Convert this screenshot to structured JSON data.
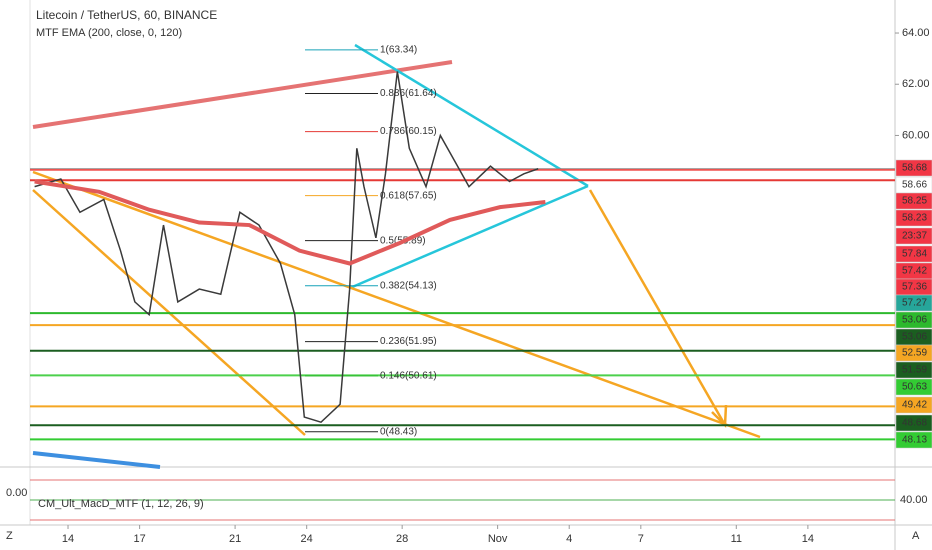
{
  "chart_data": {
    "type": "line",
    "title": "Litecoin / TetherUS, 60, BINANCE",
    "subtitle": "MTF EMA (200, close, 0, 120)",
    "xlim": [
      11.15,
      48.65
    ],
    "xticks": [
      14,
      17,
      21,
      24,
      28,
      {
        "value": 32,
        "label": "Nov"
      },
      {
        "value": 35,
        "label": "4"
      },
      {
        "value": 38,
        "label": "7"
      },
      {
        "value": 42,
        "label": "11"
      },
      {
        "value": 45,
        "label": "14"
      }
    ],
    "ylim": [
      47.09,
      65.29
    ],
    "yticks": [
      {
        "value": 64,
        "label": "64.00"
      },
      {
        "value": 62,
        "label": "62.00"
      },
      {
        "value": 60,
        "label": "60.00"
      }
    ],
    "series": [
      {
        "color": "#3a3a3a",
        "x": [
          12.6,
          13.7,
          14.5,
          15.5,
          16.2,
          16.8,
          17.4,
          18.0,
          18.6,
          19.5,
          20.4,
          21.2,
          22.0,
          22.9,
          23.5,
          23.9,
          24.6,
          25.4,
          25.8,
          26.1,
          26.4,
          26.9,
          27.3,
          27.8,
          28.3,
          29.0,
          29.6,
          30.2,
          30.8,
          31.7,
          32.5,
          33.1,
          33.7
        ],
        "values": [
          58.0,
          58.3,
          57.0,
          57.5,
          55.5,
          53.5,
          53.0,
          56.5,
          53.5,
          54.0,
          53.8,
          57.0,
          56.5,
          55.0,
          53.0,
          49.0,
          48.8,
          49.5,
          54.0,
          59.5,
          58.0,
          56.0,
          58.5,
          62.5,
          59.5,
          58.0,
          60.0,
          59.0,
          58.0,
          58.8,
          58.2,
          58.5,
          58.7
        ]
      },
      {
        "color": "#e05a5a",
        "x": [
          12.6,
          15.3,
          17.4,
          19.5,
          21.6,
          23.7,
          25.8,
          27.9,
          30.0,
          32.1,
          34.0
        ],
        "values": [
          58.2,
          57.8,
          57.1,
          56.6,
          56.5,
          55.5,
          55.0,
          55.8,
          56.7,
          57.2,
          57.4
        ]
      }
    ],
    "horizontal_lines": [
      {
        "value": 58.68,
        "color": "#5f9ea0"
      },
      {
        "value": 58.66,
        "color": "#ef5350"
      },
      {
        "value": 58.25,
        "color": "#e53935"
      },
      {
        "value": 53.06,
        "color": "#2db92d"
      },
      {
        "value": 52.59,
        "color": "#f5a623"
      },
      {
        "value": 51.59,
        "color": "#1b5e20"
      },
      {
        "value": 50.63,
        "color": "#4cd04c"
      },
      {
        "value": 49.42,
        "color": "#f5a623"
      },
      {
        "value": 48.68,
        "color": "#1b5e20"
      },
      {
        "value": 48.13,
        "color": "#33cc33"
      }
    ],
    "fib_levels": [
      {
        "label": "1(63.34)",
        "value": 63.34,
        "color": "#17a2b8"
      },
      {
        "label": "0.886(61.64)",
        "value": 61.64,
        "color": "#222222"
      },
      {
        "label": "0.786(60.15)",
        "value": 60.15,
        "color": "#e53935"
      },
      {
        "label": "0.618(57.65)",
        "value": 57.65,
        "color": "#f5a623"
      },
      {
        "label": "0.5(55.89)",
        "value": 55.89,
        "color": "#222222"
      },
      {
        "label": "0.382(54.13)",
        "value": 54.13,
        "color": "#17a2b8"
      },
      {
        "label": "0.236(51.95)",
        "value": 51.95,
        "color": "#222222"
      },
      {
        "label": "0.146(50.61)",
        "value": 50.61,
        "color": "#2db92d"
      },
      {
        "label": "0(48.43)",
        "value": 48.43,
        "color": "#222222"
      }
    ],
    "price_tags": [
      {
        "value": 58.68,
        "color": "#f23645"
      },
      {
        "value": 58.66,
        "color": "#ffffff"
      },
      {
        "value": 58.25,
        "color": "#f23645"
      },
      {
        "value": 58.23,
        "color": "#f23645"
      },
      {
        "label": "23:37",
        "color": "#f23645"
      },
      {
        "value": 57.84,
        "color": "#f23645"
      },
      {
        "value": 57.42,
        "color": "#f23645"
      },
      {
        "value": 57.36,
        "color": "#f23645"
      },
      {
        "value": 57.27,
        "color": "#26a69a"
      },
      {
        "value": 53.06,
        "color": "#2db92d"
      },
      {
        "value": 53.06,
        "color": "#1b5e20"
      },
      {
        "value": 52.59,
        "color": "#f5a623"
      },
      {
        "value": 51.59,
        "color": "#1b5e20"
      },
      {
        "value": 50.63,
        "color": "#33cc33"
      },
      {
        "value": 49.42,
        "color": "#f5a623"
      },
      {
        "value": 48.68,
        "color": "#1b5e20"
      },
      {
        "value": 48.13,
        "color": "#33cc33"
      }
    ],
    "oscillator": {
      "label": "CM_Ult_MacD_MTF (1, 12, 26, 9)",
      "left_tick": {
        "value": 0,
        "label": "0.00"
      },
      "right_tick": {
        "value": 40,
        "label": "40.00"
      }
    },
    "corner_left": "Z",
    "corner_right": "A"
  }
}
